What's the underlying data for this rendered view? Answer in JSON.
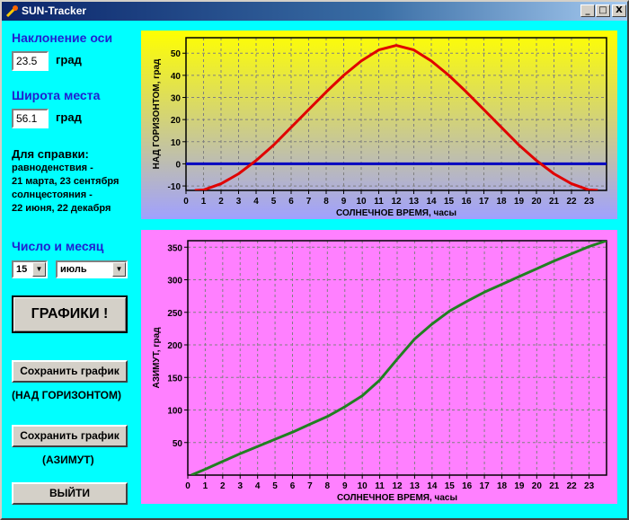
{
  "window": {
    "title": "SUN-Tracker",
    "controls": {
      "minimize": "_",
      "maximize": "□",
      "close": "X"
    }
  },
  "left": {
    "axis_tilt_label": "Наклонение оси",
    "axis_tilt_value": "23.5",
    "axis_tilt_unit": "град",
    "latitude_label": "Широта места",
    "latitude_value": "56.1",
    "latitude_unit": "град",
    "reference_title": "Для справки:",
    "reference_lines": [
      "равноденствия -",
      "21 марта, 23 сентября",
      "солнцестояния -",
      "22 июня, 22 декабря"
    ],
    "date_label": "Число и месяц",
    "day_value": "15",
    "month_value": "июль",
    "plot_button": "ГРАФИКИ !",
    "save_button_1": "Сохранить график",
    "save_caption_1": "(НАД ГОРИЗОНТОМ)",
    "save_button_2": "Сохранить график",
    "save_caption_2": "(АЗИМУТ)",
    "exit_button": "ВЫЙТИ"
  },
  "chart_data": [
    {
      "type": "line",
      "xlabel": "СОЛНЕЧНОЕ ВРЕМЯ, часы",
      "ylabel": "НАД ГОРИЗОНТОМ, град",
      "xlim": [
        0,
        24
      ],
      "ylim": [
        -12,
        57
      ],
      "xticks": [
        0,
        1,
        2,
        3,
        4,
        5,
        6,
        7,
        8,
        9,
        10,
        11,
        12,
        13,
        14,
        15,
        16,
        17,
        18,
        19,
        20,
        21,
        22,
        23
      ],
      "yticks": [
        -10,
        0,
        10,
        20,
        30,
        40,
        50
      ],
      "grid": true,
      "series": [
        {
          "color": "#e00000",
          "x": [
            0.5,
            1,
            2,
            3,
            4,
            5,
            6,
            7,
            8,
            9,
            10,
            11,
            12,
            13,
            14,
            15,
            16,
            17,
            18,
            19,
            20,
            21,
            22,
            23,
            23.5
          ],
          "y": [
            -12,
            -11.8,
            -9,
            -4.5,
            1.5,
            8.5,
            16.5,
            24.5,
            32.5,
            40,
            46.5,
            51.5,
            53.5,
            51.5,
            46.5,
            40,
            32.5,
            24.5,
            16.5,
            8.5,
            1.5,
            -4.5,
            -9,
            -11.8,
            -12
          ]
        }
      ],
      "reference_line": {
        "y": 0,
        "color": "#0000c0"
      },
      "background": [
        "#ffff00",
        "#a0a0ff"
      ]
    },
    {
      "type": "line",
      "xlabel": "СОЛНЕЧНОЕ ВРЕМЯ, часы",
      "ylabel": "АЗИМУТ, град",
      "xlim": [
        0,
        24
      ],
      "ylim": [
        0,
        360
      ],
      "xticks": [
        0,
        1,
        2,
        3,
        4,
        5,
        6,
        7,
        8,
        9,
        10,
        11,
        12,
        13,
        14,
        15,
        16,
        17,
        18,
        19,
        20,
        21,
        22,
        23
      ],
      "yticks": [
        50,
        100,
        150,
        200,
        250,
        300,
        350
      ],
      "grid": true,
      "series": [
        {
          "color": "#208020",
          "x": [
            0.2,
            1,
            2,
            3,
            4,
            5,
            6,
            7,
            8,
            9,
            10,
            11,
            12,
            13,
            14,
            15,
            16,
            17,
            18,
            19,
            20,
            21,
            22,
            23,
            24
          ],
          "y": [
            0,
            9,
            21,
            33,
            44,
            55,
            66,
            78,
            90,
            105,
            122,
            146,
            178,
            209,
            232,
            252,
            267,
            281,
            293,
            305,
            317,
            329,
            340,
            351,
            360
          ]
        }
      ],
      "background": [
        "#ff80ff",
        "#ff80ff"
      ]
    }
  ]
}
